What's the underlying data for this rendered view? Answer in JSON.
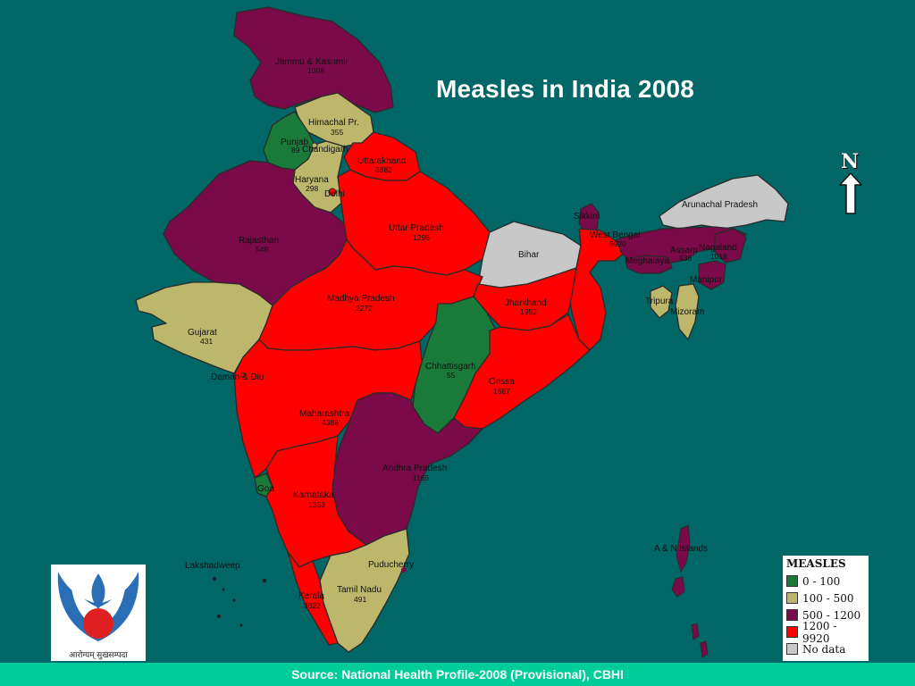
{
  "title": "Measles in India 2008",
  "north_label": "N",
  "footer_source": "Source: National Health Profile-2008 (Provisional), CBHI",
  "logo": {
    "caption": "आरोग्यम् सुखसम्पदा"
  },
  "legend": {
    "title": "MEASLES",
    "items": [
      {
        "label": "0 - 100",
        "color": "#1a7a3a"
      },
      {
        "label": "100 - 500",
        "color": "#bdb76b"
      },
      {
        "label": "500 - 1200",
        "color": "#7a0a4a"
      },
      {
        "label": "1200 - 9920",
        "color": "#ff0000"
      },
      {
        "label": "No data",
        "color": "#c8c8c8"
      }
    ]
  },
  "colors": {
    "background": "#006666",
    "footer": "#00cc99",
    "range_0_100": "#1a7a3a",
    "range_100_500": "#bdb76b",
    "range_500_1200": "#7a0a4a",
    "range_1200_9920": "#ff0000",
    "no_data": "#c8c8c8"
  },
  "regions": {
    "jammu_kashmir": {
      "name": "Jammu & Kashmir",
      "value": "1008"
    },
    "himachal": {
      "name": "Himachal Pr.",
      "value": "355"
    },
    "punjab": {
      "name": "Punjab",
      "value": "89"
    },
    "chandigarh": {
      "name": "Chandigarh"
    },
    "haryana": {
      "name": "Haryana",
      "value": "298"
    },
    "delhi": {
      "name": "Delhi"
    },
    "uttarakhand": {
      "name": "Uttarakhand",
      "value": "3882"
    },
    "rajasthan": {
      "name": "Rajasthan",
      "value": "549"
    },
    "uttar_pradesh": {
      "name": "Uttar Pradesh",
      "value": "1296"
    },
    "bihar": {
      "name": "Bihar"
    },
    "sikkim": {
      "name": "Sikkim"
    },
    "west_bengal": {
      "name": "West Bengal",
      "value": "9920"
    },
    "arunachal": {
      "name": "Arunachal Pradesh"
    },
    "assam": {
      "name": "Assam",
      "value": "936"
    },
    "meghalaya": {
      "name": "Meghalaya"
    },
    "nagaland": {
      "name": "Nagaland",
      "value": "1018"
    },
    "manipur": {
      "name": "Manipur"
    },
    "tripura": {
      "name": "Tripura"
    },
    "mizoram": {
      "name": "Mizoram"
    },
    "gujarat": {
      "name": "Gujarat",
      "value": "431"
    },
    "madhya_pradesh": {
      "name": "Madhya Pradesh",
      "value": "2272"
    },
    "jharkhand": {
      "name": "Jharkhand",
      "value": "1952"
    },
    "chhattisgarh": {
      "name": "Chhattisgarh",
      "value": "55"
    },
    "orissa": {
      "name": "Orissa",
      "value": "1687"
    },
    "daman_diu": {
      "name": "Daman & Diu"
    },
    "maharashtra": {
      "name": "Maharashtra",
      "value": "4388"
    },
    "andhra_pradesh": {
      "name": "Andhra Pradesh",
      "value": "1165"
    },
    "goa": {
      "name": "Goa"
    },
    "karnataka": {
      "name": "Karnataka",
      "value": "1353"
    },
    "lakshadweep": {
      "name": "Lakshadweep"
    },
    "puducherry": {
      "name": "Puducherry"
    },
    "tamil_nadu": {
      "name": "Tamil Nadu",
      "value": "491"
    },
    "kerala": {
      "name": "Kerala",
      "value": "3622"
    },
    "andaman_nicobar": {
      "name": "A & N Islands"
    }
  }
}
